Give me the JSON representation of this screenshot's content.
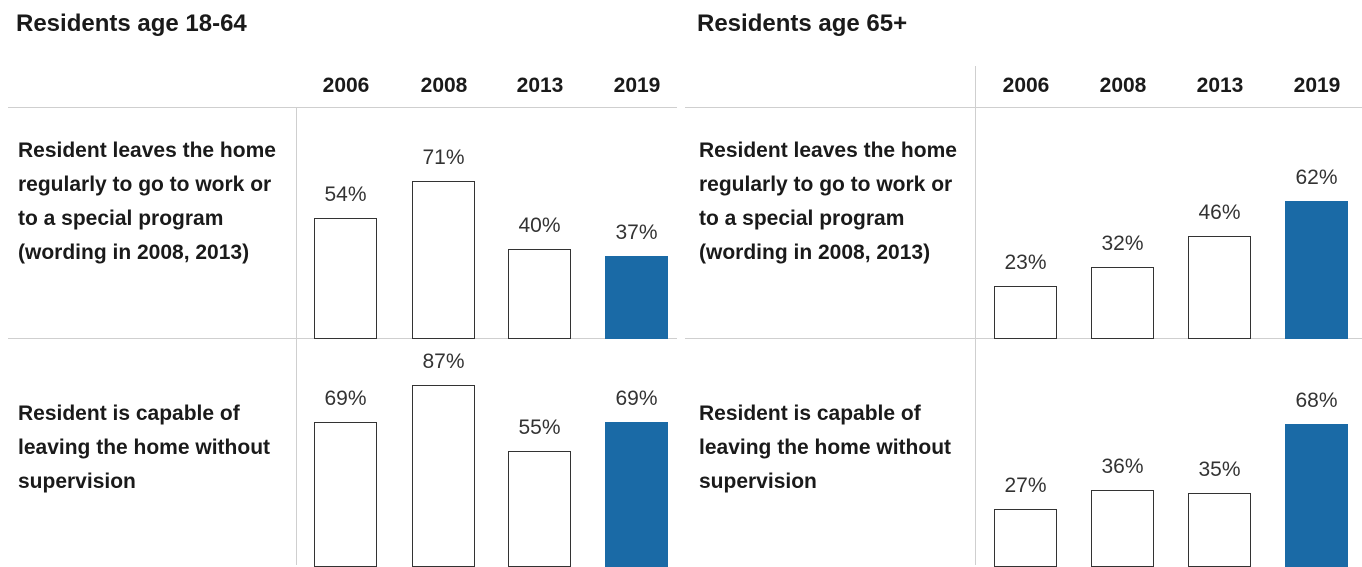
{
  "colors": {
    "highlight": "#1a6aa6",
    "bar_outline": "#333333",
    "grid": "#cfcfcf"
  },
  "chart_data": [
    {
      "type": "bar",
      "title": "Residents age 18-64",
      "categories": [
        "2006",
        "2008",
        "2013",
        "2019"
      ],
      "highlight_category": "2019",
      "rows": [
        {
          "label": "Resident leaves the home regularly to go to work or to a special program (wording in 2008, 2013)",
          "values": [
            54,
            71,
            40,
            37
          ],
          "value_labels": [
            "54%",
            "71%",
            "40%",
            "37%"
          ]
        },
        {
          "label": "Resident is capable of leaving the home without supervision",
          "values": [
            69,
            87,
            55,
            69
          ],
          "value_labels": [
            "69%",
            "87%",
            "55%",
            "69%"
          ]
        }
      ],
      "ylim": [
        0,
        100
      ],
      "grid": false
    },
    {
      "type": "bar",
      "title": "Residents age 65+",
      "categories": [
        "2006",
        "2008",
        "2013",
        "2019"
      ],
      "highlight_category": "2019",
      "rows": [
        {
          "label": "Resident leaves the home regularly to go to work or to a special program (wording in 2008, 2013)",
          "values": [
            23,
            32,
            46,
            62
          ],
          "value_labels": [
            "23%",
            "32%",
            "46%",
            "62%"
          ]
        },
        {
          "label": "Resident is capable of leaving the home without supervision",
          "values": [
            27,
            36,
            35,
            68
          ],
          "value_labels": [
            "27%",
            "36%",
            "35%",
            "68%"
          ]
        }
      ],
      "ylim": [
        0,
        100
      ],
      "grid": false
    }
  ]
}
